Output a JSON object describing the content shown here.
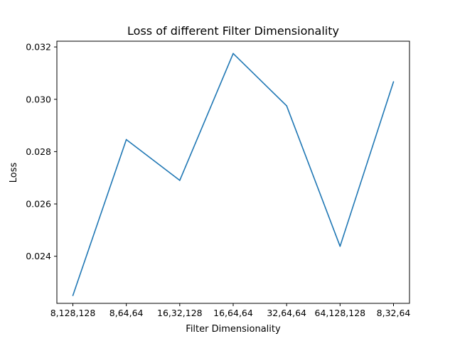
{
  "chart_data": {
    "type": "line",
    "title": "Loss of different Filter Dimensionality",
    "xlabel": "Filter Dimensionality",
    "ylabel": "Loss",
    "categories": [
      "8,128,128",
      "8,64,64",
      "16,32,128",
      "16,64,64",
      "32,64,64",
      "64,128,128",
      "8,32,64"
    ],
    "series": [
      {
        "values": [
          0.0225,
          0.02846,
          0.0269,
          0.03175,
          0.02975,
          0.02438,
          0.03067
        ],
        "color": "#1f77b4"
      }
    ],
    "ylim": [
      0.0222,
      0.03222
    ],
    "yticks": [
      0.024,
      0.026,
      0.028,
      0.03,
      0.032
    ],
    "ytick_labels": [
      "0.024",
      "0.026",
      "0.028",
      "0.030",
      "0.032"
    ],
    "grid": false
  }
}
